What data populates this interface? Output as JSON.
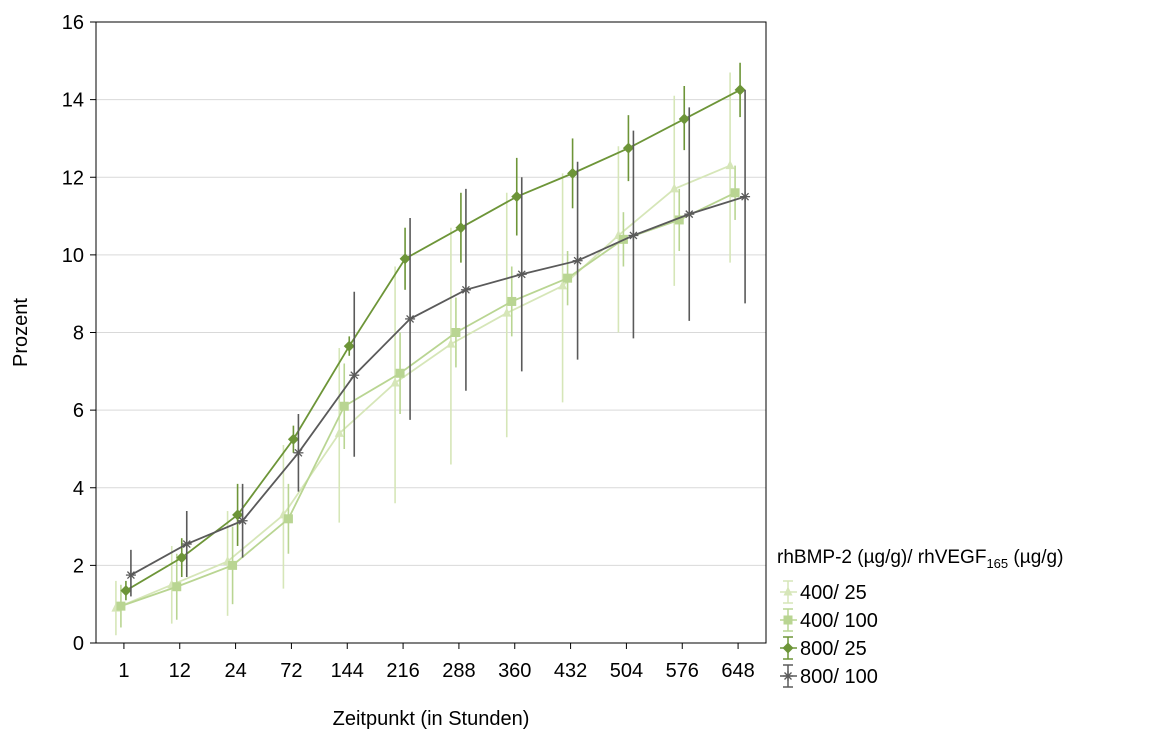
{
  "chart_data": {
    "type": "line",
    "title": "",
    "xlabel": "Zeitpunkt (in Stunden)",
    "ylabel": "Prozent",
    "categories": [
      "1",
      "12",
      "24",
      "72",
      "144",
      "216",
      "288",
      "360",
      "432",
      "504",
      "576",
      "648"
    ],
    "ylim": [
      0,
      16
    ],
    "yticks": [
      0,
      2,
      4,
      6,
      8,
      10,
      12,
      14,
      16
    ],
    "grid": true,
    "legend": {
      "title_main": "rhBMP-2 (µg/g)/ rhVEGF",
      "title_sub": "165",
      "title_end": " (µg/g)",
      "placement": "right"
    },
    "series": [
      {
        "name": "400/ 25",
        "color": "#d6e6b8",
        "marker": "triangle",
        "values": [
          0.9,
          1.5,
          2.1,
          3.3,
          5.4,
          6.7,
          7.7,
          8.5,
          9.2,
          10.5,
          11.7,
          12.3
        ],
        "err_low": [
          0.2,
          0.5,
          0.7,
          1.4,
          3.1,
          3.6,
          4.6,
          5.3,
          6.2,
          8.0,
          9.2,
          9.8
        ],
        "err_high": [
          1.6,
          2.5,
          3.4,
          5.1,
          7.6,
          9.7,
          10.7,
          11.6,
          12.1,
          12.8,
          14.1,
          14.7
        ]
      },
      {
        "name": "400/ 100",
        "color": "#b9d592",
        "marker": "square",
        "values": [
          0.95,
          1.45,
          2.0,
          3.2,
          6.1,
          6.95,
          8.0,
          8.8,
          9.4,
          10.4,
          10.9,
          11.6
        ],
        "err_low": [
          0.4,
          0.6,
          1.0,
          2.3,
          5.0,
          5.9,
          7.1,
          7.9,
          8.7,
          9.7,
          10.1,
          10.9
        ],
        "err_high": [
          1.5,
          2.3,
          3.0,
          4.1,
          7.2,
          8.0,
          8.9,
          9.7,
          10.1,
          11.1,
          11.7,
          12.3
        ]
      },
      {
        "name": "800/ 25",
        "color": "#6d9538",
        "marker": "diamond",
        "values": [
          1.35,
          2.2,
          3.3,
          5.25,
          7.65,
          9.9,
          10.7,
          11.5,
          12.1,
          12.75,
          13.5,
          14.25
        ],
        "err_low": [
          1.1,
          1.7,
          2.5,
          4.9,
          7.4,
          9.1,
          9.8,
          10.5,
          11.2,
          11.9,
          12.7,
          13.55
        ],
        "err_high": [
          1.6,
          2.7,
          4.1,
          5.6,
          7.9,
          10.7,
          11.6,
          12.5,
          13.0,
          13.6,
          14.35,
          14.95
        ]
      },
      {
        "name": "800/ 100",
        "color": "#5a5a5a",
        "marker": "asterisk",
        "values": [
          1.75,
          2.55,
          3.15,
          4.9,
          6.9,
          8.35,
          9.1,
          9.5,
          9.85,
          10.5,
          11.05,
          11.5
        ],
        "err_low": [
          1.2,
          1.7,
          2.2,
          3.9,
          4.8,
          5.75,
          6.5,
          7.0,
          7.3,
          7.85,
          8.3,
          8.75
        ],
        "err_high": [
          2.4,
          3.4,
          4.1,
          5.9,
          9.05,
          10.95,
          11.7,
          12.0,
          12.4,
          13.2,
          13.8,
          14.25
        ]
      }
    ]
  }
}
